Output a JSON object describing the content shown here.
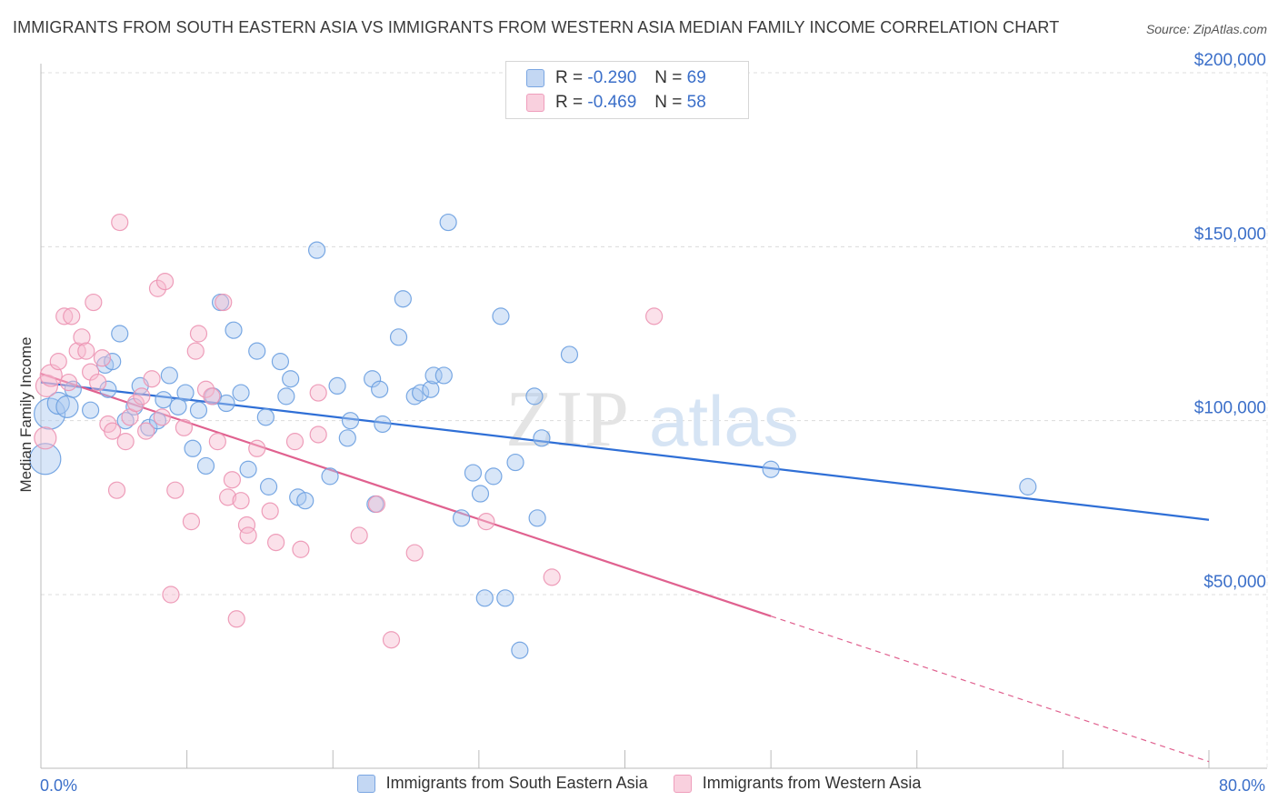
{
  "header": {
    "title": "IMMIGRANTS FROM SOUTH EASTERN ASIA VS IMMIGRANTS FROM WESTERN ASIA MEDIAN FAMILY INCOME CORRELATION CHART",
    "source": "Source: ZipAtlas.com"
  },
  "watermark": {
    "zip": "ZIP",
    "atlas": "atlas"
  },
  "legend": {
    "r_label": "R =",
    "n_label": "N =",
    "rows": [
      {
        "r": "-0.290",
        "n": "69",
        "color": "#a9c8f0"
      },
      {
        "r": "-0.469",
        "n": "58",
        "color": "#f6bcd0"
      }
    ]
  },
  "chart_data": {
    "type": "scatter",
    "title": "IMMIGRANTS FROM SOUTH EASTERN ASIA VS IMMIGRANTS FROM WESTERN ASIA MEDIAN FAMILY INCOME CORRELATION CHART",
    "xlabel": "",
    "ylabel": "Median Family Income",
    "xlim": [
      0,
      80
    ],
    "ylim": [
      0,
      210000
    ],
    "x_tick_labels": [
      "0.0%",
      "80.0%"
    ],
    "y_ticks": [
      50000,
      100000,
      150000,
      200000
    ],
    "y_tick_labels": [
      "$50,000",
      "$100,000",
      "$150,000",
      "$200,000"
    ],
    "grid": true,
    "legend_position": "top-center",
    "series": [
      {
        "name": "Immigrants from South Eastern Asia",
        "color": "#6a9fe0",
        "fill": "#a9c8f0",
        "line_color": "#2f6fd6",
        "trend": {
          "x0": 0,
          "y0": 111000,
          "x1": 80,
          "y1": 71500,
          "dashed_from": null
        },
        "points": [
          [
            0.3,
            89000,
            3
          ],
          [
            0.6,
            102000,
            3
          ],
          [
            1.2,
            105000,
            2
          ],
          [
            1.8,
            104000,
            2
          ],
          [
            2.2,
            109000,
            1
          ],
          [
            3.4,
            103000,
            1
          ],
          [
            4.4,
            116000,
            1
          ],
          [
            4.6,
            109000,
            1
          ],
          [
            4.9,
            117000,
            1
          ],
          [
            5.4,
            125000,
            1
          ],
          [
            5.8,
            100000,
            1
          ],
          [
            6.4,
            104000,
            1
          ],
          [
            6.8,
            110000,
            1
          ],
          [
            7.4,
            98000,
            1
          ],
          [
            8.0,
            100000,
            1
          ],
          [
            8.4,
            106000,
            1
          ],
          [
            8.8,
            113000,
            1
          ],
          [
            9.4,
            104000,
            1
          ],
          [
            9.9,
            108000,
            1
          ],
          [
            10.4,
            92000,
            1
          ],
          [
            10.8,
            103000,
            1
          ],
          [
            11.3,
            87000,
            1
          ],
          [
            11.8,
            107000,
            1
          ],
          [
            12.3,
            134000,
            1
          ],
          [
            12.7,
            105000,
            1
          ],
          [
            13.2,
            126000,
            1
          ],
          [
            13.7,
            108000,
            1
          ],
          [
            14.2,
            86000,
            1
          ],
          [
            14.8,
            120000,
            1
          ],
          [
            15.4,
            101000,
            1
          ],
          [
            15.6,
            81000,
            1
          ],
          [
            16.4,
            117000,
            1
          ],
          [
            16.8,
            107000,
            1
          ],
          [
            17.1,
            112000,
            1
          ],
          [
            17.6,
            78000,
            1
          ],
          [
            18.1,
            77000,
            1
          ],
          [
            18.9,
            149000,
            1
          ],
          [
            19.8,
            84000,
            1
          ],
          [
            20.3,
            110000,
            1
          ],
          [
            21.0,
            95000,
            1
          ],
          [
            21.2,
            100000,
            1
          ],
          [
            22.7,
            112000,
            1
          ],
          [
            22.9,
            76000,
            1
          ],
          [
            23.2,
            109000,
            1
          ],
          [
            23.4,
            99000,
            1
          ],
          [
            24.5,
            124000,
            1
          ],
          [
            24.8,
            135000,
            1
          ],
          [
            25.6,
            107000,
            1
          ],
          [
            26.0,
            108000,
            1
          ],
          [
            26.7,
            109000,
            1
          ],
          [
            26.9,
            113000,
            1
          ],
          [
            27.6,
            113000,
            1
          ],
          [
            27.9,
            157000,
            1
          ],
          [
            28.8,
            72000,
            1
          ],
          [
            29.6,
            85000,
            1
          ],
          [
            30.1,
            79000,
            1
          ],
          [
            30.4,
            49000,
            1
          ],
          [
            31.0,
            84000,
            1
          ],
          [
            31.5,
            130000,
            1
          ],
          [
            31.8,
            49000,
            1
          ],
          [
            32.5,
            88000,
            1
          ],
          [
            32.8,
            34000,
            1
          ],
          [
            33.8,
            107000,
            1
          ],
          [
            34.0,
            72000,
            1
          ],
          [
            34.3,
            95000,
            1
          ],
          [
            36.2,
            119000,
            1
          ],
          [
            50.0,
            86000,
            1
          ],
          [
            67.6,
            81000,
            1
          ]
        ]
      },
      {
        "name": "Immigrants from Western Asia",
        "color": "#ec93b3",
        "fill": "#f6bcd0",
        "line_color": "#e0618f",
        "trend": {
          "x0": 0,
          "y0": 113500,
          "x1": 80,
          "y1": 2000,
          "dashed_from": 50
        },
        "points": [
          [
            0.3,
            95000,
            2
          ],
          [
            0.4,
            110000,
            2
          ],
          [
            0.7,
            113000,
            2
          ],
          [
            1.2,
            117000,
            1
          ],
          [
            1.6,
            130000,
            1
          ],
          [
            1.9,
            111000,
            1
          ],
          [
            2.1,
            130000,
            1
          ],
          [
            2.5,
            120000,
            1
          ],
          [
            2.8,
            124000,
            1
          ],
          [
            3.1,
            120000,
            1
          ],
          [
            3.4,
            114000,
            1
          ],
          [
            3.6,
            134000,
            1
          ],
          [
            3.9,
            111000,
            1
          ],
          [
            4.2,
            118000,
            1
          ],
          [
            4.6,
            99000,
            1
          ],
          [
            4.9,
            97000,
            1
          ],
          [
            5.2,
            80000,
            1
          ],
          [
            5.4,
            157000,
            1
          ],
          [
            5.8,
            94000,
            1
          ],
          [
            6.1,
            101000,
            1
          ],
          [
            6.5,
            105000,
            1
          ],
          [
            6.9,
            107000,
            1
          ],
          [
            7.2,
            97000,
            1
          ],
          [
            7.6,
            112000,
            1
          ],
          [
            8.0,
            138000,
            1
          ],
          [
            8.3,
            101000,
            1
          ],
          [
            8.5,
            140000,
            1
          ],
          [
            8.9,
            50000,
            1
          ],
          [
            9.2,
            80000,
            1
          ],
          [
            9.8,
            98000,
            1
          ],
          [
            10.3,
            71000,
            1
          ],
          [
            10.6,
            120000,
            1
          ],
          [
            10.8,
            125000,
            1
          ],
          [
            11.3,
            109000,
            1
          ],
          [
            11.7,
            107000,
            1
          ],
          [
            12.1,
            94000,
            1
          ],
          [
            12.5,
            134000,
            1
          ],
          [
            12.8,
            78000,
            1
          ],
          [
            13.1,
            83000,
            1
          ],
          [
            13.4,
            43000,
            1
          ],
          [
            13.7,
            77000,
            1
          ],
          [
            14.1,
            70000,
            1
          ],
          [
            14.2,
            67000,
            1
          ],
          [
            14.8,
            92000,
            1
          ],
          [
            15.7,
            74000,
            1
          ],
          [
            16.1,
            65000,
            1
          ],
          [
            17.4,
            94000,
            1
          ],
          [
            17.8,
            63000,
            1
          ],
          [
            19.0,
            108000,
            1
          ],
          [
            19.0,
            96000,
            1
          ],
          [
            21.8,
            67000,
            1
          ],
          [
            23.0,
            76000,
            1
          ],
          [
            24.0,
            37000,
            1
          ],
          [
            25.6,
            62000,
            1
          ],
          [
            30.5,
            71000,
            1
          ],
          [
            35.0,
            55000,
            1
          ],
          [
            42.0,
            130000,
            1
          ]
        ]
      }
    ]
  },
  "bottom_legend": [
    {
      "label": "Immigrants from South Eastern Asia",
      "color": "#a9c8f0",
      "border": "#6a9fe0"
    },
    {
      "label": "Immigrants from Western Asia",
      "color": "#f6bcd0",
      "border": "#ec93b3"
    }
  ]
}
